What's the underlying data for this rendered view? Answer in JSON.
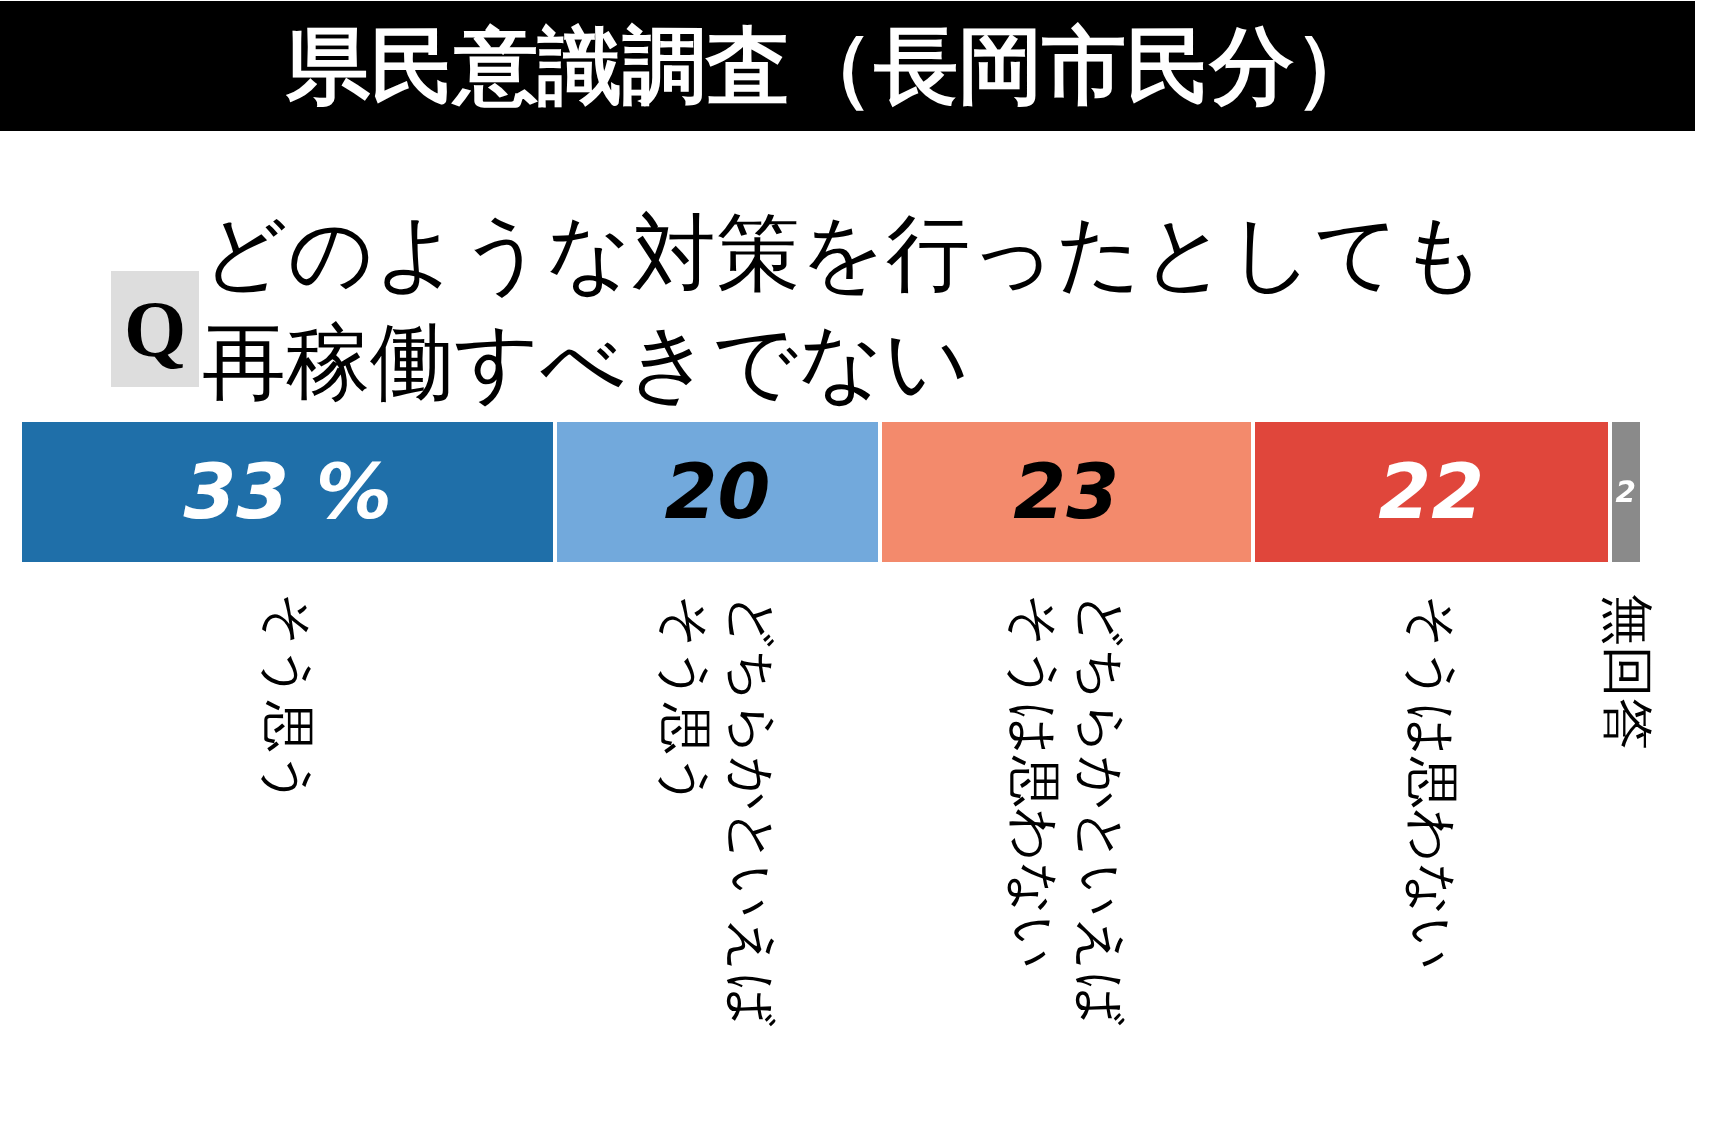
{
  "chart_data": {
    "type": "bar",
    "title": "県民意識調査（長岡市民分）",
    "subtitle": "どのような対策を行ったとしても再稼働すべきでない",
    "annotations": [
      "Q"
    ],
    "orientation": "horizontal",
    "stacked": true,
    "legend": false,
    "categories": [
      null
    ],
    "series": [
      {
        "name": "そう思う",
        "color": "#1f6fa9",
        "values": [
          33
        ],
        "value_labels": [
          "33 %"
        ]
      },
      {
        "name": "どちらかといえばそう思う",
        "color": "#72a9dc",
        "values": [
          20
        ],
        "value_labels": [
          "20"
        ]
      },
      {
        "name": "どちらかといえばそうは思わない",
        "color": "#f38a6c",
        "values": [
          23
        ],
        "value_labels": [
          "23"
        ]
      },
      {
        "name": "そうは思わない",
        "color": "#e0463b",
        "values": [
          22
        ],
        "value_labels": [
          "22"
        ]
      },
      {
        "name": "無回答",
        "color": "#8a8a8a",
        "values": [
          2
        ],
        "value_labels": [
          "2"
        ]
      }
    ]
  }
}
